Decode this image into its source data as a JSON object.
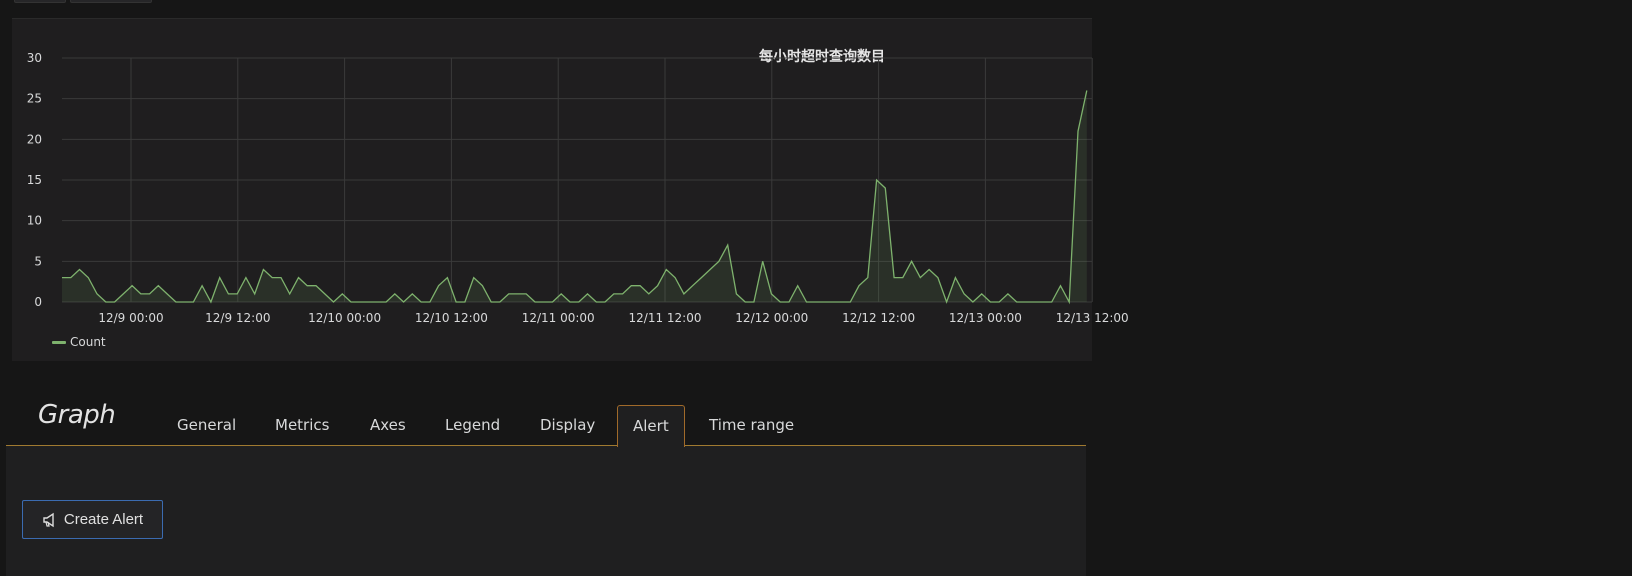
{
  "panel": {
    "legend_label": "Count"
  },
  "chart_data": {
    "type": "area",
    "title": "每小时超时查询数目",
    "series": [
      {
        "name": "Count",
        "color": "#7eb26d",
        "start": "12/8 16:00",
        "interval": "1h",
        "values": [
          3,
          3,
          4,
          3,
          1,
          0,
          0,
          1,
          2,
          1,
          1,
          2,
          1,
          0,
          0,
          0,
          2,
          0,
          3,
          1,
          1,
          3,
          1,
          4,
          3,
          3,
          1,
          3,
          2,
          2,
          1,
          0,
          1,
          0,
          0,
          0,
          0,
          0,
          1,
          0,
          1,
          0,
          0,
          2,
          3,
          0,
          0,
          3,
          2,
          0,
          0,
          1,
          1,
          1,
          0,
          0,
          0,
          1,
          0,
          0,
          1,
          0,
          0,
          1,
          1,
          2,
          2,
          1,
          2,
          4,
          3,
          1,
          2,
          3,
          4,
          5,
          7,
          1,
          0,
          0,
          5,
          1,
          0,
          0,
          2,
          0,
          0,
          0,
          0,
          0,
          0,
          2,
          3,
          15,
          14,
          3,
          3,
          5,
          3,
          4,
          3,
          0,
          3,
          1,
          0,
          1,
          0,
          0,
          1,
          0,
          0,
          0,
          0,
          0,
          2,
          0,
          21,
          26
        ]
      }
    ],
    "y_ticks": [
      "0",
      "5",
      "10",
      "15",
      "20",
      "25",
      "30"
    ],
    "ylim": [
      0,
      30
    ],
    "x_ticks": [
      "12/9 00:00",
      "12/9 12:00",
      "12/10 00:00",
      "12/10 12:00",
      "12/11 00:00",
      "12/11 12:00",
      "12/12 00:00",
      "12/12 12:00",
      "12/13 00:00",
      "12/13 12:00"
    ],
    "grid": true,
    "legend": "bottom-left"
  },
  "editor": {
    "title": "Graph",
    "tabs": [
      {
        "label": "General"
      },
      {
        "label": "Metrics"
      },
      {
        "label": "Axes"
      },
      {
        "label": "Legend"
      },
      {
        "label": "Display"
      },
      {
        "label": "Alert",
        "active": true
      },
      {
        "label": "Time range"
      }
    ],
    "create_alert_label": "Create Alert",
    "create_alert_icon": "megaphone-icon"
  }
}
